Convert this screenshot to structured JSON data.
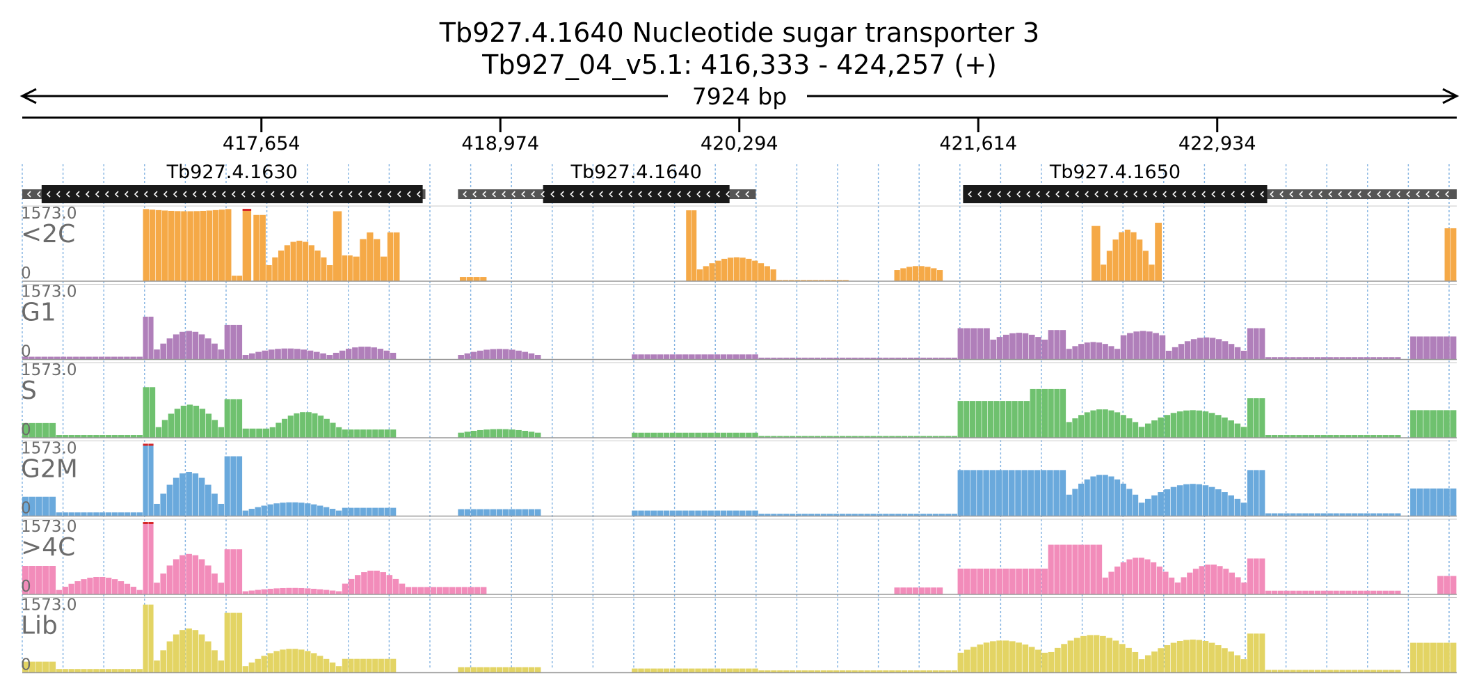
{
  "title": {
    "line1": "Tb927.4.1640  Nucleotide sugar transporter 3",
    "line2": "Tb927_04_v5.1: 416,333 - 424,257 (+)"
  },
  "span_label": "7924 bp",
  "colors": {
    "text": "#000000",
    "track_label": "#6b6b6b",
    "gene_box": "#1a1a1a",
    "flank_box": "#555555",
    "grid": "#7fb0e0",
    "clip_marker": "#d62728"
  },
  "chart_data": {
    "type": "bar",
    "title": "Tb927.4.1640  Nucleotide sugar transporter 3",
    "xlabel": "",
    "ylabel": "",
    "xlim": [
      416333,
      424257
    ],
    "ylim": [
      0,
      1573
    ],
    "x_ticks": [
      {
        "value": 417654,
        "label": "417,654"
      },
      {
        "value": 418974,
        "label": "418,974"
      },
      {
        "value": 420294,
        "label": "420,294"
      },
      {
        "value": 421614,
        "label": "421,614"
      },
      {
        "value": 422934,
        "label": "422,934"
      }
    ],
    "genes": [
      {
        "name": "Tb927.4.1630",
        "flank_start": 416333,
        "cds_start": 416440,
        "cds_end": 418545,
        "flank_end": 418560,
        "strand": "-"
      },
      {
        "name": "Tb927.4.1640",
        "flank_start": 418740,
        "cds_start": 419210,
        "cds_end": 420240,
        "flank_end": 420385,
        "strand": "-"
      },
      {
        "name": "Tb927.4.1650",
        "flank_start": 421530,
        "cds_start": 421530,
        "cds_end": 423210,
        "flank_end": 424257,
        "strand": "-"
      }
    ],
    "series": [
      {
        "name": "<2C",
        "color": "#f5a947",
        "ymax_label": "1573.0",
        "ymin_label": "0",
        "segments": [
          {
            "start": 417000,
            "end": 417490,
            "shape": "dome",
            "peak": 1520,
            "edge": 1573
          },
          {
            "start": 417490,
            "end": 417550,
            "shape": "flat",
            "peak": 120
          },
          {
            "start": 417550,
            "end": 417600,
            "shape": "flat",
            "peak": 1573
          },
          {
            "start": 417610,
            "end": 417680,
            "shape": "flat",
            "peak": 1440
          },
          {
            "start": 417680,
            "end": 418050,
            "shape": "dome",
            "peak": 880,
            "edge": 260
          },
          {
            "start": 418050,
            "end": 418100,
            "shape": "flat",
            "peak": 1520
          },
          {
            "start": 418100,
            "end": 418160,
            "shape": "flat",
            "peak": 560
          },
          {
            "start": 418160,
            "end": 418350,
            "shape": "dome",
            "peak": 1060,
            "edge": 300
          },
          {
            "start": 418350,
            "end": 418420,
            "shape": "flat",
            "peak": 1060
          },
          {
            "start": 418420,
            "end": 418540,
            "shape": "flat",
            "peak": 0
          },
          {
            "start": 418750,
            "end": 418900,
            "shape": "flat",
            "peak": 90
          },
          {
            "start": 420000,
            "end": 420060,
            "shape": "flat",
            "peak": 1540
          },
          {
            "start": 420060,
            "end": 420500,
            "shape": "dome",
            "peak": 520,
            "edge": 220
          },
          {
            "start": 420500,
            "end": 420900,
            "shape": "flat",
            "peak": 25
          },
          {
            "start": 421150,
            "end": 421420,
            "shape": "dome",
            "peak": 330,
            "edge": 220
          },
          {
            "start": 422240,
            "end": 422290,
            "shape": "flat",
            "peak": 1200
          },
          {
            "start": 422290,
            "end": 422590,
            "shape": "dome",
            "peak": 1120,
            "edge": 200
          },
          {
            "start": 422590,
            "end": 422630,
            "shape": "flat",
            "peak": 1270
          },
          {
            "start": 424190,
            "end": 424257,
            "shape": "flat",
            "peak": 1150
          }
        ]
      },
      {
        "name": "G1",
        "color": "#b07fba",
        "ymax_label": "1573.0",
        "ymin_label": "0",
        "segments": [
          {
            "start": 416333,
            "end": 417000,
            "shape": "flat",
            "peak": 60
          },
          {
            "start": 417000,
            "end": 417060,
            "shape": "flat",
            "peak": 930
          },
          {
            "start": 417060,
            "end": 417450,
            "shape": "dome",
            "peak": 620,
            "edge": 150
          },
          {
            "start": 417450,
            "end": 417550,
            "shape": "flat",
            "peak": 750
          },
          {
            "start": 417550,
            "end": 418050,
            "shape": "dome",
            "peak": 240,
            "edge": 80
          },
          {
            "start": 418050,
            "end": 418400,
            "shape": "dome",
            "peak": 280,
            "edge": 120
          },
          {
            "start": 418740,
            "end": 419200,
            "shape": "dome",
            "peak": 230,
            "edge": 80
          },
          {
            "start": 419700,
            "end": 420400,
            "shape": "flat",
            "peak": 110
          },
          {
            "start": 420400,
            "end": 421500,
            "shape": "flat",
            "peak": 40
          },
          {
            "start": 421500,
            "end": 421680,
            "shape": "flat",
            "peak": 680
          },
          {
            "start": 421680,
            "end": 422000,
            "shape": "dome",
            "peak": 580,
            "edge": 400
          },
          {
            "start": 422000,
            "end": 422100,
            "shape": "flat",
            "peak": 640
          },
          {
            "start": 422100,
            "end": 422400,
            "shape": "dome",
            "peak": 380,
            "edge": 200
          },
          {
            "start": 422400,
            "end": 422650,
            "shape": "dome",
            "peak": 620,
            "edge": 500
          },
          {
            "start": 422650,
            "end": 423100,
            "shape": "dome",
            "peak": 480,
            "edge": 150
          },
          {
            "start": 423100,
            "end": 423200,
            "shape": "flat",
            "peak": 680
          },
          {
            "start": 423200,
            "end": 423950,
            "shape": "flat",
            "peak": 50
          },
          {
            "start": 424000,
            "end": 424257,
            "shape": "flat",
            "peak": 500
          }
        ]
      },
      {
        "name": "S",
        "color": "#6fc16f",
        "ymax_label": "1573.0",
        "ymin_label": "0",
        "segments": [
          {
            "start": 416333,
            "end": 416520,
            "shape": "flat",
            "peak": 320
          },
          {
            "start": 416520,
            "end": 417000,
            "shape": "flat",
            "peak": 60
          },
          {
            "start": 417000,
            "end": 417070,
            "shape": "flat",
            "peak": 1100
          },
          {
            "start": 417070,
            "end": 417450,
            "shape": "dome",
            "peak": 720,
            "edge": 150
          },
          {
            "start": 417450,
            "end": 417550,
            "shape": "flat",
            "peak": 840
          },
          {
            "start": 417550,
            "end": 417700,
            "shape": "flat",
            "peak": 200
          },
          {
            "start": 417700,
            "end": 418100,
            "shape": "dome",
            "peak": 560,
            "edge": 180
          },
          {
            "start": 418100,
            "end": 418400,
            "shape": "flat",
            "peak": 180
          },
          {
            "start": 418740,
            "end": 419200,
            "shape": "dome",
            "peak": 190,
            "edge": 100
          },
          {
            "start": 419700,
            "end": 420400,
            "shape": "flat",
            "peak": 110
          },
          {
            "start": 420400,
            "end": 421500,
            "shape": "flat",
            "peak": 40
          },
          {
            "start": 421500,
            "end": 421900,
            "shape": "flat",
            "peak": 800
          },
          {
            "start": 421900,
            "end": 422100,
            "shape": "flat",
            "peak": 1060
          },
          {
            "start": 422100,
            "end": 422500,
            "shape": "dome",
            "peak": 620,
            "edge": 300
          },
          {
            "start": 422500,
            "end": 423100,
            "shape": "dome",
            "peak": 600,
            "edge": 200
          },
          {
            "start": 423100,
            "end": 423200,
            "shape": "flat",
            "peak": 860
          },
          {
            "start": 423200,
            "end": 423950,
            "shape": "flat",
            "peak": 60
          },
          {
            "start": 424000,
            "end": 424257,
            "shape": "flat",
            "peak": 600
          }
        ]
      },
      {
        "name": "G2M",
        "color": "#6aa9dc",
        "ymax_label": "1573.0",
        "ymin_label": "0",
        "segments": [
          {
            "start": 416333,
            "end": 416520,
            "shape": "flat",
            "peak": 420
          },
          {
            "start": 416520,
            "end": 417000,
            "shape": "flat",
            "peak": 80
          },
          {
            "start": 417000,
            "end": 417060,
            "shape": "flat",
            "peak": 1573
          },
          {
            "start": 417060,
            "end": 417450,
            "shape": "dome",
            "peak": 960,
            "edge": 150
          },
          {
            "start": 417450,
            "end": 417550,
            "shape": "flat",
            "peak": 1300
          },
          {
            "start": 417550,
            "end": 418100,
            "shape": "dome",
            "peak": 300,
            "edge": 100
          },
          {
            "start": 418100,
            "end": 418400,
            "shape": "flat",
            "peak": 180
          },
          {
            "start": 418740,
            "end": 419200,
            "shape": "flat",
            "peak": 150
          },
          {
            "start": 419700,
            "end": 420400,
            "shape": "flat",
            "peak": 120
          },
          {
            "start": 420400,
            "end": 421500,
            "shape": "flat",
            "peak": 50
          },
          {
            "start": 421500,
            "end": 422100,
            "shape": "flat",
            "peak": 1000
          },
          {
            "start": 422100,
            "end": 422500,
            "shape": "dome",
            "peak": 900,
            "edge": 400
          },
          {
            "start": 422500,
            "end": 423100,
            "shape": "dome",
            "peak": 700,
            "edge": 250
          },
          {
            "start": 423100,
            "end": 423200,
            "shape": "flat",
            "peak": 1000
          },
          {
            "start": 423200,
            "end": 423950,
            "shape": "flat",
            "peak": 60
          },
          {
            "start": 424000,
            "end": 424257,
            "shape": "flat",
            "peak": 600
          }
        ]
      },
      {
        "name": ">4C",
        "color": "#f28cba",
        "ymax_label": "1573.0",
        "ymin_label": "0",
        "segments": [
          {
            "start": 416333,
            "end": 416520,
            "shape": "flat",
            "peak": 620
          },
          {
            "start": 416520,
            "end": 417000,
            "shape": "dome",
            "peak": 380,
            "edge": 60
          },
          {
            "start": 417000,
            "end": 417060,
            "shape": "flat",
            "peak": 1573
          },
          {
            "start": 417060,
            "end": 417450,
            "shape": "dome",
            "peak": 880,
            "edge": 150
          },
          {
            "start": 417450,
            "end": 417550,
            "shape": "flat",
            "peak": 980
          },
          {
            "start": 417550,
            "end": 418100,
            "shape": "dome",
            "peak": 140,
            "edge": 60
          },
          {
            "start": 418100,
            "end": 418450,
            "shape": "dome",
            "peak": 520,
            "edge": 180
          },
          {
            "start": 418450,
            "end": 418900,
            "shape": "flat",
            "peak": 160
          },
          {
            "start": 421150,
            "end": 421420,
            "shape": "flat",
            "peak": 150
          },
          {
            "start": 421500,
            "end": 422000,
            "shape": "flat",
            "peak": 560
          },
          {
            "start": 422000,
            "end": 422300,
            "shape": "flat",
            "peak": 1080
          },
          {
            "start": 422300,
            "end": 422700,
            "shape": "dome",
            "peak": 800,
            "edge": 300
          },
          {
            "start": 422700,
            "end": 423100,
            "shape": "dome",
            "peak": 650,
            "edge": 200
          },
          {
            "start": 423100,
            "end": 423200,
            "shape": "flat",
            "peak": 780
          },
          {
            "start": 423200,
            "end": 423950,
            "shape": "flat",
            "peak": 80
          },
          {
            "start": 424150,
            "end": 424257,
            "shape": "flat",
            "peak": 400
          }
        ]
      },
      {
        "name": "Lib",
        "color": "#e3d464",
        "ymax_label": "1573.0",
        "ymin_label": "0",
        "segments": [
          {
            "start": 416333,
            "end": 416520,
            "shape": "flat",
            "peak": 240
          },
          {
            "start": 416520,
            "end": 417000,
            "shape": "flat",
            "peak": 80
          },
          {
            "start": 417000,
            "end": 417060,
            "shape": "flat",
            "peak": 1480
          },
          {
            "start": 417060,
            "end": 417450,
            "shape": "dome",
            "peak": 960,
            "edge": 150
          },
          {
            "start": 417450,
            "end": 417550,
            "shape": "flat",
            "peak": 1300
          },
          {
            "start": 417550,
            "end": 418100,
            "shape": "dome",
            "peak": 520,
            "edge": 100
          },
          {
            "start": 418100,
            "end": 418400,
            "shape": "flat",
            "peak": 300
          },
          {
            "start": 418740,
            "end": 419200,
            "shape": "flat",
            "peak": 120
          },
          {
            "start": 419700,
            "end": 420400,
            "shape": "flat",
            "peak": 90
          },
          {
            "start": 420400,
            "end": 421500,
            "shape": "flat",
            "peak": 50
          },
          {
            "start": 421500,
            "end": 422000,
            "shape": "dome",
            "peak": 700,
            "edge": 400
          },
          {
            "start": 422000,
            "end": 422500,
            "shape": "dome",
            "peak": 820,
            "edge": 400
          },
          {
            "start": 422500,
            "end": 423100,
            "shape": "dome",
            "peak": 720,
            "edge": 250
          },
          {
            "start": 423100,
            "end": 423200,
            "shape": "flat",
            "peak": 850
          },
          {
            "start": 423200,
            "end": 423950,
            "shape": "flat",
            "peak": 60
          },
          {
            "start": 424000,
            "end": 424257,
            "shape": "flat",
            "peak": 650
          }
        ]
      }
    ]
  }
}
